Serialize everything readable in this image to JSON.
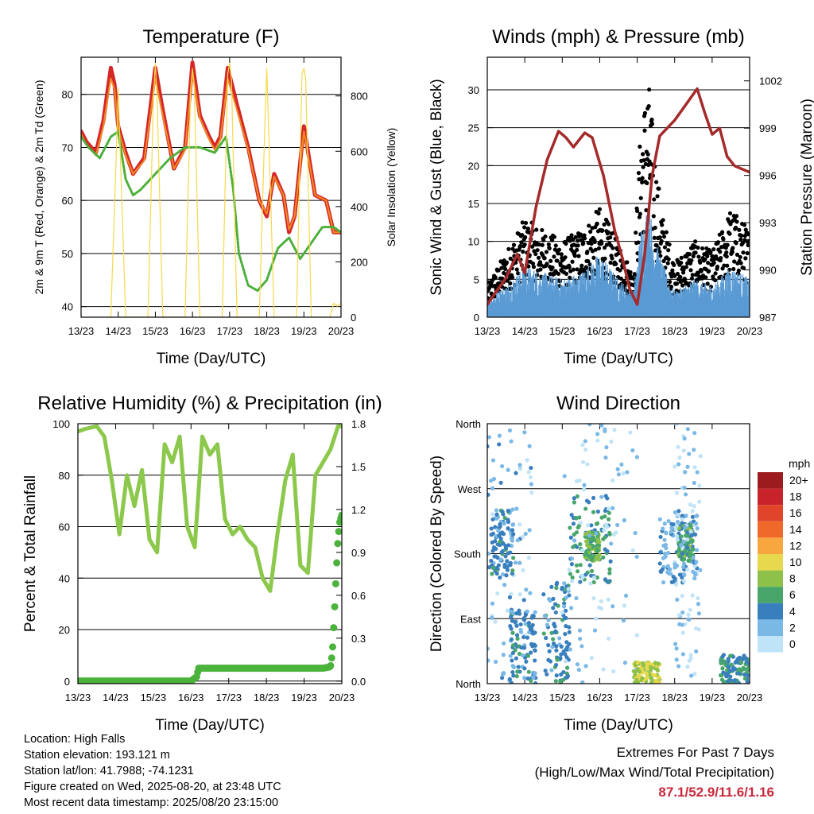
{
  "x_ticks": [
    "13/23",
    "14/23",
    "15/23",
    "16/23",
    "17/23",
    "18/23",
    "19/23",
    "20/23"
  ],
  "info": {
    "location": "Location: High Falls",
    "elevation": "Station elevation: 193.121 m",
    "latlon": "Station lat/lon: 41.7988; -74.1231",
    "created": "Figure created on Wed, 2025-08-20, at 23:48 UTC",
    "recent": "Most recent data timestamp: 2025/08/20 23:15:00"
  },
  "extremes": {
    "title": "Extremes For Past 7 Days",
    "subtitle": "(High/Low/Max Wind/Total Precipitation)",
    "values": "87.1/52.9/11.6/1.16"
  },
  "colors": {
    "temp2m": "#d62728",
    "temp9m": "#f08a24",
    "dewpoint": "#4caf3a",
    "solar": "#f7d94a",
    "gust": "#000000",
    "wind": "#5a9bd4",
    "pressure": "#a52a2a",
    "rh": "#8cc84b",
    "precip": "#4bb33c"
  },
  "chart_data": [
    {
      "type": "line",
      "title": "Temperature (F)",
      "xlabel": "Time (Day/UTC)",
      "ylabel": "2m & 9m T (Red, Orange) & 2m Td (Green)",
      "ylabel_right": "Solar Insolation (Yellow)",
      "xlim": [
        0,
        7
      ],
      "ylim": [
        38,
        87
      ],
      "ylim_right": [
        0,
        940
      ],
      "y_ticks": [
        40,
        50,
        60,
        70,
        80
      ],
      "y_ticks_right": [
        0,
        200,
        400,
        600,
        800
      ],
      "grid": true,
      "series": [
        {
          "name": "2m T",
          "color": "#d62728",
          "x": [
            0,
            0.15,
            0.4,
            0.6,
            0.8,
            0.9,
            1.0,
            1.2,
            1.4,
            1.7,
            2.0,
            2.2,
            2.5,
            2.8,
            3.0,
            3.2,
            3.45,
            3.6,
            3.75,
            3.95,
            4.2,
            4.5,
            4.8,
            5.0,
            5.2,
            5.45,
            5.6,
            5.75,
            6.0,
            6.3,
            6.6,
            6.8,
            7.0
          ],
          "y": [
            73,
            71,
            69,
            75,
            85,
            82,
            74,
            69,
            65,
            68,
            85,
            77,
            66,
            70,
            86,
            76,
            72,
            70,
            72,
            85,
            78,
            70,
            60,
            57,
            65,
            61,
            54,
            57,
            74,
            61,
            60,
            54,
            54
          ]
        },
        {
          "name": "9m T",
          "color": "#f08a24",
          "x": [
            0,
            0.15,
            0.4,
            0.6,
            0.8,
            0.9,
            1.0,
            1.2,
            1.4,
            1.7,
            2.0,
            2.2,
            2.5,
            2.8,
            3.0,
            3.2,
            3.45,
            3.6,
            3.75,
            3.95,
            4.2,
            4.5,
            4.8,
            5.0,
            5.2,
            5.45,
            5.6,
            5.75,
            6.0,
            6.3,
            6.6,
            6.8,
            7.0
          ],
          "y": [
            72.5,
            70.5,
            68.5,
            74,
            83,
            81,
            73.5,
            68.5,
            65,
            67.5,
            83,
            76,
            66,
            69.5,
            84,
            75.5,
            71.5,
            69.5,
            71.5,
            83,
            77,
            69.5,
            60,
            57.5,
            64.5,
            61,
            54.5,
            57,
            73,
            61,
            60,
            54,
            54
          ]
        },
        {
          "name": "2m Td",
          "color": "#4caf3a",
          "x": [
            0,
            0.2,
            0.5,
            0.8,
            1.0,
            1.2,
            1.4,
            1.6,
            2.0,
            2.4,
            2.8,
            3.2,
            3.6,
            3.9,
            4.1,
            4.25,
            4.5,
            4.75,
            5.0,
            5.3,
            5.6,
            5.9,
            6.2,
            6.5,
            6.8,
            7.0
          ],
          "y": [
            72,
            70,
            68,
            72,
            73,
            64,
            61,
            62,
            65,
            68,
            70,
            70,
            69,
            72,
            62,
            50,
            44,
            43,
            45,
            51,
            53,
            49,
            52,
            55,
            55,
            54
          ]
        },
        {
          "name": "Solar",
          "axis": "right",
          "color": "#f7d94a",
          "x": [
            0.8,
            0.95,
            1.0,
            1.05,
            1.2,
            1.8,
            1.95,
            2.0,
            2.05,
            2.2,
            2.8,
            2.95,
            3.0,
            3.05,
            3.2,
            3.8,
            3.95,
            4.0,
            4.05,
            4.2,
            4.8,
            4.95,
            5.0,
            5.05,
            5.2,
            5.8,
            5.95,
            6.0,
            6.05,
            6.2,
            6.7,
            6.8,
            6.9,
            7.0
          ],
          "y": [
            0,
            600,
            830,
            610,
            0,
            0,
            800,
            920,
            780,
            0,
            0,
            820,
            900,
            830,
            0,
            0,
            880,
            920,
            860,
            0,
            0,
            700,
            900,
            680,
            0,
            0,
            880,
            900,
            860,
            0,
            0,
            50,
            40,
            50
          ]
        }
      ]
    },
    {
      "type": "line",
      "title": "Winds (mph) & Pressure (mb)",
      "xlabel": "Time (Day/UTC)",
      "ylabel": "Sonic Wind & Gust (Blue, Black)",
      "ylabel_right": "Station Pressure (Maroon)",
      "xlim": [
        0,
        7
      ],
      "ylim": [
        0,
        34.3
      ],
      "ylim_right": [
        987,
        1003.5
      ],
      "y_ticks": [
        0,
        5,
        10,
        15,
        20,
        25,
        30
      ],
      "y_ticks_right": [
        987,
        990,
        993,
        996,
        999,
        1002
      ],
      "grid": true,
      "series": [
        {
          "name": "Gust",
          "color": "#000000",
          "style": "dots",
          "x": [
            0,
            0.5,
            1.0,
            1.5,
            2.0,
            2.5,
            3.0,
            3.5,
            3.9,
            4.1,
            4.3,
            4.5,
            4.7,
            5.0,
            5.5,
            6.0,
            6.5,
            7.0
          ],
          "y": [
            3,
            6,
            9,
            8,
            7,
            8,
            10,
            7,
            4,
            18,
            22,
            14,
            9,
            5,
            7,
            6,
            10,
            8
          ]
        },
        {
          "name": "Wind",
          "color": "#5a9bd4",
          "style": "band",
          "x": [
            0,
            0.5,
            1.0,
            1.5,
            2.0,
            2.5,
            3.0,
            3.5,
            3.9,
            4.1,
            4.3,
            4.5,
            4.7,
            5.0,
            5.5,
            6.0,
            6.5,
            7.0
          ],
          "y": [
            1.5,
            2.5,
            4,
            3.5,
            3,
            3.5,
            5,
            3,
            2,
            7,
            9,
            6,
            4,
            2,
            3,
            2.5,
            4,
            3
          ]
        },
        {
          "name": "Pressure",
          "axis": "right",
          "color": "#a52a2a",
          "x": [
            0,
            0.2,
            0.5,
            0.8,
            1.0,
            1.3,
            1.6,
            1.9,
            2.1,
            2.3,
            2.6,
            2.8,
            3.1,
            3.4,
            3.6,
            3.8,
            4.0,
            4.2,
            4.4,
            4.6,
            5.0,
            5.3,
            5.6,
            5.8,
            6.0,
            6.2,
            6.4,
            6.6,
            7.0
          ],
          "y": [
            987.8,
            988.5,
            989.5,
            991,
            989.8,
            994,
            997,
            998.8,
            998.4,
            997.8,
            998.7,
            998.4,
            996,
            992.5,
            990.8,
            988.8,
            987.8,
            991,
            996,
            998.5,
            999.5,
            1000.5,
            1001.5,
            1000,
            998.6,
            999,
            997.2,
            996.6,
            996.2
          ]
        }
      ]
    },
    {
      "type": "line",
      "title": "Relative Humidity (%) & Precipitation (in)",
      "xlabel": "Time (Day/UTC)",
      "ylabel": "Percent & Total Rainfall",
      "xlim": [
        0,
        7
      ],
      "ylim": [
        -1,
        100
      ],
      "ylim_right": [
        -0.018,
        1.8
      ],
      "y_ticks": [
        0,
        20,
        40,
        60,
        80,
        100
      ],
      "y_ticks_right": [
        "0.0",
        "0.3",
        "0.6",
        "0.9",
        "1.2",
        "1.5",
        "1.8"
      ],
      "grid": true,
      "series": [
        {
          "name": "RH",
          "color": "#8cc84b",
          "x": [
            0,
            0.2,
            0.5,
            0.7,
            0.9,
            1.1,
            1.3,
            1.5,
            1.7,
            1.9,
            2.1,
            2.3,
            2.5,
            2.7,
            2.9,
            3.1,
            3.3,
            3.5,
            3.7,
            3.9,
            4.1,
            4.3,
            4.5,
            4.7,
            4.9,
            5.1,
            5.3,
            5.5,
            5.7,
            5.9,
            6.1,
            6.3,
            6.5,
            6.7,
            6.9,
            7.0
          ],
          "y": [
            97,
            98,
            99,
            95,
            78,
            57,
            80,
            68,
            82,
            55,
            50,
            92,
            85,
            95,
            60,
            52,
            95,
            88,
            92,
            63,
            57,
            60,
            55,
            52,
            40,
            35,
            58,
            78,
            88,
            45,
            42,
            80,
            85,
            90,
            99,
            99
          ]
        },
        {
          "name": "Precip",
          "axis": "right",
          "color": "#4bb33c",
          "x": [
            0,
            1.0,
            2.0,
            3.0,
            3.15,
            3.2,
            4.0,
            5.0,
            6.0,
            6.5,
            6.7,
            6.75,
            6.8,
            6.85,
            6.9,
            6.95,
            7.0
          ],
          "y": [
            0,
            0,
            0,
            0,
            0.03,
            0.09,
            0.09,
            0.09,
            0.09,
            0.09,
            0.1,
            0.2,
            0.45,
            0.75,
            1.0,
            1.12,
            1.16
          ]
        }
      ]
    },
    {
      "type": "scatter",
      "title": "Wind Direction",
      "xlabel": "Time (Day/UTC)",
      "ylabel": "Direction (Colored By Speed)",
      "xlim": [
        0,
        7
      ],
      "ylim": [
        0,
        360
      ],
      "y_tick_labels": [
        "North",
        "East",
        "South",
        "West",
        "North"
      ],
      "grid": true,
      "colorbar": {
        "title": "mph",
        "labels": [
          "20+",
          "18",
          "16",
          "14",
          "12",
          "10",
          "8",
          "6",
          "4",
          "2",
          "0"
        ],
        "colors": [
          "#9b1b1e",
          "#c8222a",
          "#e0442a",
          "#ef6a2a",
          "#f7a640",
          "#e7d84d",
          "#8ec14a",
          "#48a66b",
          "#3a7fbd",
          "#7ab8e6",
          "#bfe3f7"
        ]
      },
      "clusters": [
        {
          "x": [
            0,
            1.2
          ],
          "y": [
            0,
            360
          ],
          "speed": 2
        },
        {
          "x": [
            0.1,
            0.7
          ],
          "y": [
            150,
            240
          ],
          "speed": 4
        },
        {
          "x": [
            0.6,
            1.3
          ],
          "y": [
            0,
            100
          ],
          "speed": 4
        },
        {
          "x": [
            1.5,
            2.2
          ],
          "y": [
            0,
            140
          ],
          "speed": 4
        },
        {
          "x": [
            2.2,
            3.3
          ],
          "y": [
            140,
            260
          ],
          "speed": 5
        },
        {
          "x": [
            2.6,
            3.0
          ],
          "y": [
            170,
            210
          ],
          "speed": 7
        },
        {
          "x": [
            2.0,
            4.0
          ],
          "y": [
            0,
            360
          ],
          "speed": 1
        },
        {
          "x": [
            3.9,
            4.6
          ],
          "y": [
            0,
            30
          ],
          "speed": 9
        },
        {
          "x": [
            4.6,
            5.6
          ],
          "y": [
            140,
            240
          ],
          "speed": 3
        },
        {
          "x": [
            5.1,
            5.5
          ],
          "y": [
            170,
            220
          ],
          "speed": 6
        },
        {
          "x": [
            5.0,
            5.7
          ],
          "y": [
            0,
            360
          ],
          "speed": 1
        },
        {
          "x": [
            6.2,
            7.0
          ],
          "y": [
            0,
            40
          ],
          "speed": 5
        }
      ]
    }
  ]
}
